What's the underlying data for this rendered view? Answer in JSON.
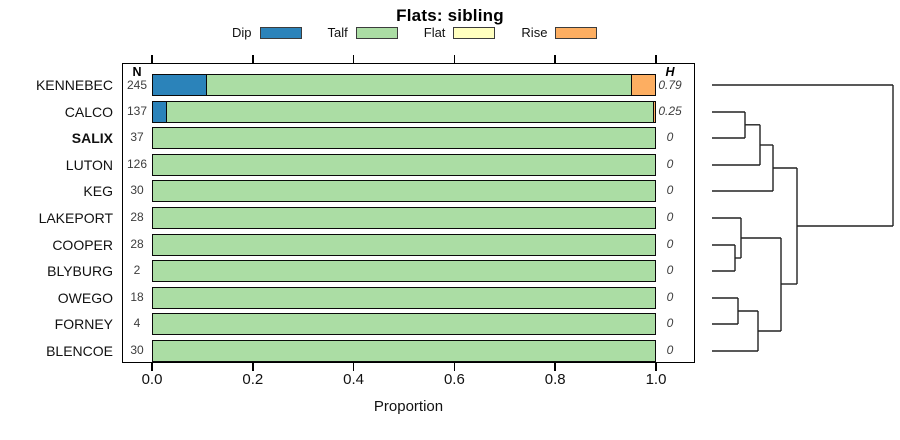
{
  "title": "Flats: sibling",
  "legend": {
    "items": [
      {
        "label": "Dip",
        "color": "#2B83BA"
      },
      {
        "label": "Talf",
        "color": "#ABDDA4"
      },
      {
        "label": "Flat",
        "color": "#FFFFBF"
      },
      {
        "label": "Rise",
        "color": "#FDAE61"
      }
    ]
  },
  "columns": {
    "n_header": "N",
    "h_header": "H"
  },
  "x_axis": {
    "label": "Proportion",
    "tick_labels": [
      "0.0",
      "0.2",
      "0.4",
      "0.6",
      "0.8",
      "1.0"
    ],
    "tick_values": [
      0,
      0.2,
      0.4,
      0.6,
      0.8,
      1.0
    ],
    "range": [
      0,
      1
    ]
  },
  "chart_data": {
    "type": "bar",
    "orientation": "horizontal_stacked",
    "title": "Flats: sibling",
    "xlabel": "Proportion",
    "xlim": [
      0,
      1
    ],
    "grid": false,
    "categories": [
      "KENNEBEC",
      "CALCO",
      "SALIX",
      "LUTON",
      "KEG",
      "LAKEPORT",
      "COOPER",
      "BLYBURG",
      "OWEGO",
      "FORNEY",
      "BLENCOE"
    ],
    "bold_categories": [
      "SALIX"
    ],
    "series": [
      {
        "name": "Dip",
        "color": "#2B83BA",
        "values": [
          0.11,
          0.03,
          0,
          0,
          0,
          0,
          0,
          0,
          0,
          0,
          0
        ]
      },
      {
        "name": "Talf",
        "color": "#ABDDA4",
        "values": [
          0.84,
          0.965,
          1,
          1,
          1,
          1,
          1,
          1,
          1,
          1,
          1
        ]
      },
      {
        "name": "Flat",
        "color": "#FFFFBF",
        "values": [
          0,
          0,
          0,
          0,
          0,
          0,
          0,
          0,
          0,
          0,
          0
        ]
      },
      {
        "name": "Rise",
        "color": "#FDAE61",
        "values": [
          0.05,
          0.005,
          0,
          0,
          0,
          0,
          0,
          0,
          0,
          0,
          0
        ]
      }
    ],
    "n_values": [
      245,
      137,
      37,
      126,
      30,
      28,
      28,
      2,
      18,
      4,
      30
    ],
    "h_values": [
      "0.79",
      "0.25",
      "0",
      "0",
      "0",
      "0",
      "0",
      "0",
      "0",
      "0",
      "0"
    ]
  },
  "dendrogram": {
    "merges": [
      [
        "CALCO",
        "SALIX"
      ],
      [
        "CALCO+SALIX",
        "LUTON"
      ],
      [
        "CALCO+SALIX+LUTON",
        "KEG"
      ],
      [
        "COOPER",
        "BLYBURG"
      ],
      [
        "LAKEPORT",
        "COOPER+BLYBURG"
      ],
      [
        "OWEGO",
        "FORNEY"
      ],
      [
        "OWEGO+FORNEY",
        "BLENCOE"
      ],
      [
        "LAKEPORT-cluster",
        "OWEGO-cluster"
      ],
      [
        "CALCO-cluster",
        "lower-cluster"
      ],
      [
        "KENNEBEC",
        "all-others"
      ]
    ],
    "line_color": "#222222",
    "segments": [
      [
        712,
        112,
        745,
        112
      ],
      [
        712,
        138,
        745,
        138
      ],
      [
        745,
        112,
        745,
        138
      ],
      [
        745,
        124.8,
        760,
        124.8
      ],
      [
        712,
        165,
        760,
        165
      ],
      [
        760,
        124.8,
        760,
        165
      ],
      [
        760,
        145,
        773,
        145
      ],
      [
        712,
        191,
        773,
        191
      ],
      [
        773,
        145,
        773,
        191
      ],
      [
        712,
        245,
        735,
        245
      ],
      [
        712,
        271,
        735,
        271
      ],
      [
        735,
        245,
        735,
        271
      ],
      [
        712,
        218,
        741,
        218
      ],
      [
        735,
        258,
        741,
        258
      ],
      [
        741,
        218,
        741,
        258
      ],
      [
        712,
        298,
        738,
        298
      ],
      [
        712,
        324,
        738,
        324
      ],
      [
        738,
        298,
        738,
        324
      ],
      [
        738,
        311,
        758,
        311
      ],
      [
        712,
        351,
        758,
        351
      ],
      [
        758,
        311,
        758,
        351
      ],
      [
        741,
        238,
        781,
        238
      ],
      [
        758,
        331,
        781,
        331
      ],
      [
        781,
        238,
        781,
        331
      ],
      [
        773,
        168,
        797,
        168
      ],
      [
        781,
        284,
        797,
        284
      ],
      [
        797,
        168,
        797,
        284
      ],
      [
        712,
        85,
        893,
        85
      ],
      [
        797,
        226,
        893,
        226
      ],
      [
        893,
        85,
        893,
        226
      ]
    ]
  }
}
